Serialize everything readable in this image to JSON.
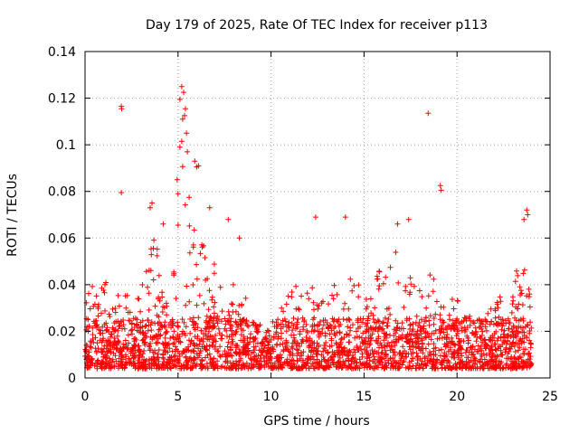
{
  "chart_data": {
    "type": "scatter",
    "title": "Day 179 of 2025, Rate Of TEC Index for receiver p113",
    "xlabel": "GPS time / hours",
    "ylabel": "ROTI / TECUs",
    "xlim": [
      0,
      25
    ],
    "ylim": [
      0,
      0.14
    ],
    "x_ticks": [
      "0",
      "5",
      "10",
      "15",
      "20",
      "25"
    ],
    "y_ticks": [
      "0",
      "0.02",
      "0.04",
      "0.06",
      "0.08",
      "0.1",
      "0.12",
      "0.14"
    ],
    "grid": true,
    "marker": "+",
    "color": "#ff0000",
    "envelope": [
      [
        0.0,
        0.03
      ],
      [
        0.3,
        0.045
      ],
      [
        0.6,
        0.04
      ],
      [
        1.0,
        0.05
      ],
      [
        1.3,
        0.03
      ],
      [
        1.7,
        0.03
      ],
      [
        2.0,
        0.05
      ],
      [
        2.3,
        0.035
      ],
      [
        2.7,
        0.035
      ],
      [
        3.0,
        0.045
      ],
      [
        3.3,
        0.055
      ],
      [
        3.7,
        0.06
      ],
      [
        4.0,
        0.055
      ],
      [
        4.3,
        0.05
      ],
      [
        4.7,
        0.045
      ],
      [
        5.0,
        0.085
      ],
      [
        5.2,
        0.11
      ],
      [
        5.4,
        0.095
      ],
      [
        5.7,
        0.07
      ],
      [
        6.0,
        0.06
      ],
      [
        6.3,
        0.06
      ],
      [
        6.7,
        0.05
      ],
      [
        7.0,
        0.055
      ],
      [
        7.3,
        0.05
      ],
      [
        7.7,
        0.048
      ],
      [
        8.0,
        0.042
      ],
      [
        8.3,
        0.035
      ],
      [
        8.7,
        0.035
      ],
      [
        9.0,
        0.03
      ],
      [
        9.3,
        0.022
      ],
      [
        9.7,
        0.018
      ],
      [
        10.0,
        0.018
      ],
      [
        10.3,
        0.025
      ],
      [
        10.7,
        0.035
      ],
      [
        11.0,
        0.038
      ],
      [
        11.3,
        0.045
      ],
      [
        11.7,
        0.045
      ],
      [
        12.0,
        0.04
      ],
      [
        12.3,
        0.04
      ],
      [
        12.7,
        0.035
      ],
      [
        13.0,
        0.04
      ],
      [
        13.3,
        0.04
      ],
      [
        13.7,
        0.045
      ],
      [
        14.0,
        0.035
      ],
      [
        14.3,
        0.045
      ],
      [
        14.7,
        0.04
      ],
      [
        15.0,
        0.04
      ],
      [
        15.3,
        0.035
      ],
      [
        15.7,
        0.045
      ],
      [
        16.0,
        0.05
      ],
      [
        16.3,
        0.045
      ],
      [
        16.7,
        0.055
      ],
      [
        17.0,
        0.045
      ],
      [
        17.3,
        0.05
      ],
      [
        17.7,
        0.04
      ],
      [
        18.0,
        0.04
      ],
      [
        18.3,
        0.05
      ],
      [
        18.7,
        0.045
      ],
      [
        19.0,
        0.04
      ],
      [
        19.3,
        0.035
      ],
      [
        19.7,
        0.035
      ],
      [
        20.0,
        0.04
      ],
      [
        20.3,
        0.035
      ],
      [
        20.7,
        0.028
      ],
      [
        21.0,
        0.03
      ],
      [
        21.3,
        0.025
      ],
      [
        21.7,
        0.03
      ],
      [
        22.0,
        0.03
      ],
      [
        22.3,
        0.035
      ],
      [
        22.7,
        0.03
      ],
      [
        23.0,
        0.045
      ],
      [
        23.3,
        0.05
      ],
      [
        23.7,
        0.06
      ],
      [
        24.0,
        0.045
      ]
    ],
    "outliers": [
      [
        1.95,
        0.1165
      ],
      [
        1.97,
        0.1155
      ],
      [
        1.95,
        0.0795
      ],
      [
        5.2,
        0.125
      ],
      [
        5.3,
        0.1225
      ],
      [
        5.1,
        0.1195
      ],
      [
        5.4,
        0.1155
      ],
      [
        5.35,
        0.1125
      ],
      [
        5.25,
        0.111
      ],
      [
        5.45,
        0.105
      ],
      [
        5.2,
        0.1015
      ],
      [
        5.1,
        0.099
      ],
      [
        5.5,
        0.097
      ],
      [
        5.9,
        0.093
      ],
      [
        6.1,
        0.091
      ],
      [
        6.0,
        0.0905
      ],
      [
        4.95,
        0.085
      ],
      [
        5.0,
        0.079
      ],
      [
        5.6,
        0.0775
      ],
      [
        18.45,
        0.1135
      ],
      [
        19.1,
        0.0825
      ],
      [
        19.15,
        0.0805
      ],
      [
        14.0,
        0.069
      ],
      [
        12.4,
        0.069
      ],
      [
        17.4,
        0.068
      ],
      [
        16.8,
        0.066
      ],
      [
        23.75,
        0.072
      ],
      [
        23.8,
        0.07
      ],
      [
        23.6,
        0.068
      ],
      [
        3.5,
        0.073
      ],
      [
        3.6,
        0.075
      ],
      [
        6.7,
        0.073
      ],
      [
        7.7,
        0.068
      ],
      [
        4.2,
        0.066
      ],
      [
        8.3,
        0.06
      ]
    ]
  }
}
